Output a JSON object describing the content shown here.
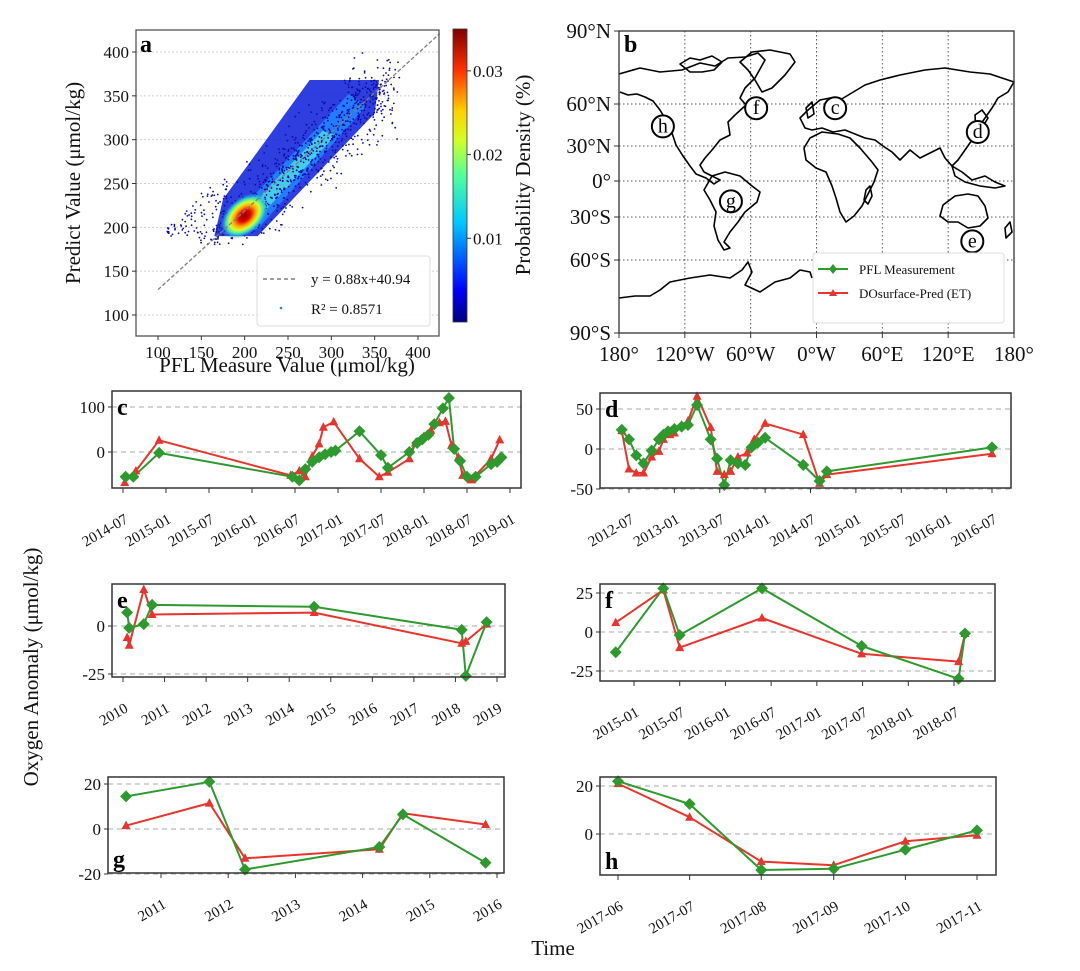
{
  "colors": {
    "pfl": "#2e9a2e",
    "pred": "#e8342c",
    "grid": "#bbbbbb",
    "fit_line": "#7f7f7f"
  },
  "chart_data": [
    {
      "id": "a",
      "type": "scatter",
      "panel_letter": "a",
      "xlabel": "PFL Measure Value (μmol/kg)",
      "ylabel": "Predict Value (μmol/kg)",
      "xlim": [
        75,
        425
      ],
      "ylim": [
        75,
        425
      ],
      "xticks": [
        100,
        150,
        200,
        250,
        300,
        350,
        400
      ],
      "yticks": [
        100,
        150,
        200,
        250,
        300,
        350,
        400
      ],
      "grid": "y-dotted",
      "fit": {
        "slope": 0.88,
        "intercept": 40.94,
        "x_range": [
          100,
          425
        ]
      },
      "density_core": {
        "x": 192,
        "y": 205
      },
      "legend": {
        "position": "bottom-right",
        "entries": [
          "y = 0.88x+40.94",
          "R² = 0.8571"
        ]
      },
      "colorbar": {
        "label": "Probability Density (%)",
        "range": [
          0,
          0.035
        ],
        "ticks": [
          0.01,
          0.02,
          0.03
        ],
        "tick_labels": [
          "0.01",
          "0.02",
          "0.03"
        ],
        "colormap": "jet"
      }
    },
    {
      "id": "b",
      "type": "map",
      "panel_letter": "b",
      "lon_ticks": [
        -180,
        -120,
        -60,
        0,
        60,
        120,
        180
      ],
      "lon_labels": [
        "180°",
        "120°W",
        "60°W",
        "0°W",
        "60°E",
        "120°E",
        "180°"
      ],
      "lat_ticks": [
        90,
        60,
        30,
        0,
        -30,
        -60,
        -90
      ],
      "lat_labels": [
        "90°N",
        "60°N",
        "30°N",
        "0°",
        "30°S",
        "60°S",
        "90°S"
      ],
      "regions": [
        {
          "label": "c",
          "lon": 17,
          "lat": 57
        },
        {
          "label": "d",
          "lon": 147,
          "lat": 40
        },
        {
          "label": "e",
          "lon": 142,
          "lat": -47
        },
        {
          "label": "f",
          "lon": -55,
          "lat": 57
        },
        {
          "label": "g",
          "lon": -78,
          "lat": -17
        },
        {
          "label": "h",
          "lon": -140,
          "lat": 44
        }
      ],
      "legend": {
        "position": "bottom-right",
        "entries": [
          "PFL Measurement",
          "DOsurface-Pred (ET)"
        ]
      }
    },
    {
      "id": "c",
      "type": "line",
      "panel_letter": "c",
      "xlim": [
        2014.45,
        2019.1
      ],
      "ylim": [
        -78,
        138
      ],
      "yticks": [
        0,
        100
      ],
      "ytick_labels": [
        "0",
        "100"
      ],
      "xticks": [
        2014.5,
        2015.0,
        2015.5,
        2016.0,
        2016.5,
        2017.0,
        2017.5,
        2018.0,
        2018.5,
        2019.0
      ],
      "xtick_labels": [
        "2014-07",
        "2015-01",
        "2015-07",
        "2016-01",
        "2016-07",
        "2017-01",
        "2017-07",
        "2018-01",
        "2018-07",
        "2019-01"
      ],
      "letter_pos": "top-left",
      "series": [
        {
          "name": "PFL Measurement",
          "marker": "diamond",
          "x": [
            2014.53,
            2014.62,
            2014.92,
            2016.47,
            2016.55,
            2016.62,
            2016.7,
            2016.78,
            2016.85,
            2016.92,
            2016.97,
            2017.25,
            2017.5,
            2017.58,
            2017.83,
            2017.92,
            2017.98,
            2018.05,
            2018.12,
            2018.22,
            2018.29,
            2018.35,
            2018.42,
            2018.5,
            2018.6,
            2018.78,
            2018.85,
            2018.9
          ],
          "y": [
            -55,
            -55,
            -2,
            -55,
            -63,
            -38,
            -22,
            -12,
            -5,
            0,
            3,
            46,
            -7,
            -35,
            0,
            20,
            28,
            38,
            62,
            97,
            120,
            7,
            -20,
            -55,
            -55,
            -27,
            -22,
            -12
          ]
        },
        {
          "name": "DOsurface-Pred (ET)",
          "marker": "triangle",
          "x": [
            2014.52,
            2014.65,
            2014.92,
            2016.45,
            2016.55,
            2016.62,
            2016.7,
            2016.78,
            2016.83,
            2016.95,
            2017.25,
            2017.48,
            2017.58,
            2017.83,
            2017.9,
            2018.0,
            2018.08,
            2018.18,
            2018.25,
            2018.32,
            2018.4,
            2018.45,
            2018.55,
            2018.78,
            2018.88
          ],
          "y": [
            -68,
            -42,
            26,
            -52,
            -42,
            -55,
            -10,
            18,
            55,
            67,
            -15,
            -55,
            -45,
            -15,
            20,
            35,
            48,
            65,
            68,
            15,
            -12,
            -52,
            -62,
            -15,
            27
          ]
        }
      ]
    },
    {
      "id": "d",
      "type": "line",
      "panel_letter": "d",
      "xlim": [
        2012.35,
        2016.67
      ],
      "ylim": [
        -50,
        72
      ],
      "yticks": [
        -50,
        0,
        50
      ],
      "ytick_labels": [
        "-50",
        "0",
        "50"
      ],
      "xticks": [
        2012.5,
        2013.0,
        2013.5,
        2014.0,
        2014.5,
        2015.0,
        2015.5,
        2016.0,
        2016.5
      ],
      "xtick_labels": [
        "2012-07",
        "2013-01",
        "2013-07",
        "2014-01",
        "2014-07",
        "2015-01",
        "2015-07",
        "2016-01",
        "2016-07"
      ],
      "letter_pos": "top-left",
      "series": [
        {
          "name": "PFL Measurement",
          "marker": "diamond",
          "x": [
            2012.42,
            2012.5,
            2012.58,
            2012.66,
            2012.75,
            2012.83,
            2012.88,
            2012.93,
            2013.0,
            2013.08,
            2013.15,
            2013.25,
            2013.4,
            2013.47,
            2013.55,
            2013.62,
            2013.7,
            2013.78,
            2013.85,
            2013.92,
            2014.0,
            2014.42,
            2014.6,
            2014.68,
            2016.5
          ],
          "y": [
            24,
            12,
            -8,
            -18,
            -2,
            12,
            18,
            22,
            25,
            28,
            30,
            55,
            12,
            -12,
            -45,
            -14,
            -18,
            -20,
            2,
            8,
            14,
            -20,
            -40,
            -28,
            2
          ]
        },
        {
          "name": "DOsurface-Pred (ET)",
          "marker": "triangle",
          "x": [
            2012.42,
            2012.5,
            2012.58,
            2012.66,
            2012.75,
            2012.83,
            2012.88,
            2012.95,
            2013.0,
            2013.08,
            2013.15,
            2013.25,
            2013.4,
            2013.47,
            2013.55,
            2013.62,
            2013.7,
            2013.8,
            2013.88,
            2014.0,
            2014.42,
            2014.6,
            2014.68,
            2016.5
          ],
          "y": [
            23,
            -25,
            -30,
            -30,
            -10,
            -3,
            12,
            18,
            20,
            30,
            35,
            66,
            27,
            -28,
            -32,
            -28,
            -10,
            -5,
            12,
            32,
            18,
            -43,
            -32,
            -6
          ]
        }
      ]
    },
    {
      "id": "e",
      "type": "line",
      "panel_letter": "e",
      "xlim": [
        2009.88,
        2019.12
      ],
      "ylim": [
        -27,
        22
      ],
      "yticks": [
        -25,
        0
      ],
      "ytick_labels": [
        "-25",
        "0"
      ],
      "xticks": [
        2010,
        2011,
        2012,
        2013,
        2014,
        2015,
        2016,
        2017,
        2018,
        2019
      ],
      "xtick_labels": [
        "2010",
        "2011",
        "2012",
        "2013",
        "2014",
        "2015",
        "2016",
        "2017",
        "2018",
        "2019"
      ],
      "letter_pos": "top-left",
      "series": [
        {
          "name": "PFL Measurement",
          "marker": "diamond",
          "x": [
            2010.1,
            2010.15,
            2010.5,
            2010.7,
            2014.6,
            2018.15,
            2018.25,
            2018.75
          ],
          "y": [
            7,
            -1,
            1,
            11,
            10,
            -2,
            -26,
            2
          ]
        },
        {
          "name": "DOsurface-Pred (ET)",
          "marker": "triangle",
          "x": [
            2010.1,
            2010.15,
            2010.5,
            2010.7,
            2014.6,
            2018.15,
            2018.25,
            2018.75
          ],
          "y": [
            -6,
            -10,
            19,
            6,
            7,
            -9,
            -8,
            1
          ]
        }
      ]
    },
    {
      "id": "f",
      "type": "line",
      "panel_letter": "f",
      "xlim": [
        2014.62,
        2018.77
      ],
      "ylim": [
        -33,
        32
      ],
      "yticks": [
        -25,
        0,
        25
      ],
      "ytick_labels": [
        "-25",
        "0",
        "25"
      ],
      "xticks": [
        2015.0,
        2015.5,
        2016.0,
        2016.5,
        2017.0,
        2017.5,
        2018.0,
        2018.5
      ],
      "xtick_labels": [
        "2015-01",
        "2015-07",
        "2016-01",
        "2016-07",
        "2017-01",
        "2017-07",
        "2018-01",
        "2018-07"
      ],
      "letter_pos": "top-left",
      "series": [
        {
          "name": "PFL Measurement",
          "marker": "diamond",
          "x": [
            2014.8,
            2015.32,
            2015.5,
            2016.4,
            2017.49,
            2018.55,
            2018.62
          ],
          "y": [
            -13,
            28,
            -2,
            28,
            -9,
            -30,
            -1
          ]
        },
        {
          "name": "DOsurface-Pred (ET)",
          "marker": "triangle",
          "x": [
            2014.8,
            2015.32,
            2015.5,
            2016.4,
            2017.49,
            2018.55,
            2018.62
          ],
          "y": [
            6,
            27,
            -10,
            9,
            -14,
            -19,
            -1
          ]
        }
      ]
    },
    {
      "id": "g",
      "type": "line",
      "panel_letter": "g",
      "xlim": [
        2010.26,
        2016.1
      ],
      "ylim": [
        -20,
        23
      ],
      "yticks": [
        -20,
        0,
        20
      ],
      "ytick_labels": [
        "-20",
        "0",
        "20"
      ],
      "xticks": [
        2011,
        2012,
        2013,
        2014,
        2015,
        2016
      ],
      "xtick_labels": [
        "2011",
        "2012",
        "2013",
        "2014",
        "2015",
        "2016"
      ],
      "letter_pos": "bottom-left",
      "series": [
        {
          "name": "PFL Measurement",
          "marker": "diamond",
          "x": [
            2010.48,
            2011.72,
            2012.25,
            2014.25,
            2014.6,
            2015.83
          ],
          "y": [
            14.5,
            21,
            -18,
            -8,
            6.5,
            -15
          ]
        },
        {
          "name": "DOsurface-Pred (ET)",
          "marker": "triangle",
          "x": [
            2010.48,
            2011.72,
            2012.25,
            2014.25,
            2014.6,
            2015.83
          ],
          "y": [
            1.5,
            11.5,
            -13,
            -9,
            7,
            2
          ]
        }
      ]
    },
    {
      "id": "h",
      "type": "line",
      "panel_letter": "h",
      "xlim": [
        2017.37,
        2017.97
      ],
      "ylim": [
        -16.5,
        23.5
      ],
      "yticks": [
        0,
        20
      ],
      "ytick_labels": [
        "0",
        "20"
      ],
      "xticks": [
        2017.417,
        2017.5,
        2017.583,
        2017.667,
        2017.75,
        2017.833
      ],
      "xtick_labels": [
        "2017-06",
        "2017-07",
        "2017-08",
        "2017-09",
        "2017-10",
        "2017-11"
      ],
      "letter_pos": "bottom-left",
      "series": [
        {
          "name": "PFL Measurement",
          "marker": "diamond",
          "x": [
            2017.417,
            2017.5,
            2017.583,
            2017.667,
            2017.75,
            2017.833
          ],
          "y": [
            22,
            12.5,
            -15,
            -14.5,
            -6.5,
            1.5
          ]
        },
        {
          "name": "DOsurface-Pred (ET)",
          "marker": "triangle",
          "x": [
            2017.417,
            2017.5,
            2017.583,
            2017.667,
            2017.75,
            2017.833
          ],
          "y": [
            21,
            7,
            -11.5,
            -13,
            -3,
            -0.5
          ]
        }
      ]
    }
  ],
  "shared_labels": {
    "ylabel": "Oxygen Anomaly (μmol/kg)",
    "xlabel": "Time"
  }
}
